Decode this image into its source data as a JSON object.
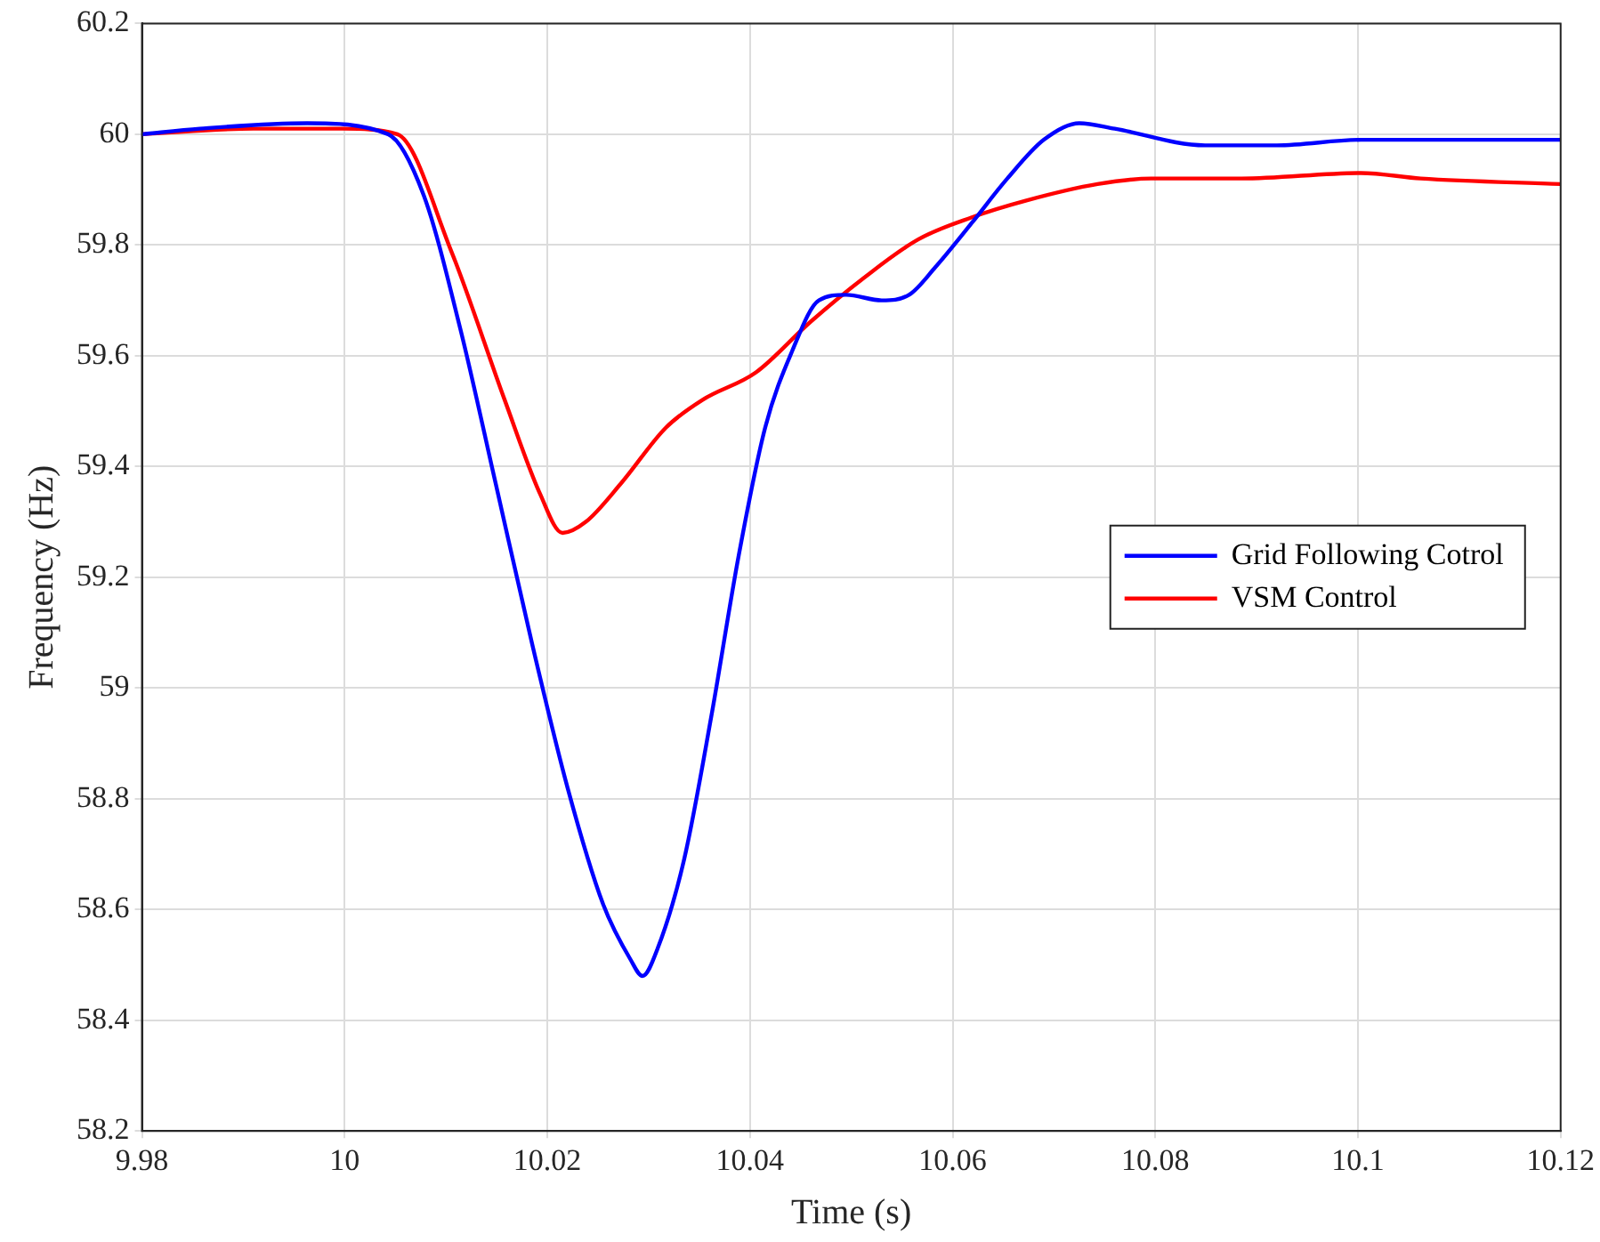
{
  "chart_data": {
    "type": "line",
    "xlabel": "Time (s)",
    "ylabel": "Frequency (Hz)",
    "xlim": [
      9.98,
      10.12
    ],
    "xticks": [
      9.98,
      10,
      10.02,
      10.04,
      10.06,
      10.08,
      10.1,
      10.12
    ],
    "ylim": [
      58.2,
      60.2
    ],
    "yticks": [
      58.2,
      58.4,
      58.6,
      58.8,
      59,
      59.2,
      59.4,
      59.6,
      59.8,
      60,
      60.2
    ],
    "grid": true,
    "legend": "right",
    "marker": "none",
    "line_style": "solid",
    "series": [
      {
        "name": "Grid Following Cotrol",
        "color": "#0000ff",
        "x": [
          9.98,
          9.9857,
          9.9963,
          10.0043,
          10.0078,
          10.0114,
          10.0149,
          10.0185,
          10.022,
          10.0255,
          10.0282,
          10.0294,
          10.0309,
          10.0335,
          10.0362,
          10.0389,
          10.0415,
          10.0442,
          10.0468,
          10.0495,
          10.053,
          10.0557,
          10.0583,
          10.0619,
          10.0654,
          10.069,
          10.0725,
          10.076,
          10.0849,
          10.092,
          10.1003,
          10.1097,
          10.12
        ],
        "values": [
          60.0,
          60.01,
          60.02,
          60.0,
          59.89,
          59.65,
          59.37,
          59.08,
          58.82,
          58.61,
          58.51,
          58.48,
          58.53,
          58.69,
          58.95,
          59.24,
          59.47,
          59.61,
          59.7,
          59.71,
          59.7,
          59.71,
          59.76,
          59.84,
          59.92,
          59.99,
          60.02,
          60.01,
          59.98,
          59.98,
          59.99,
          59.99,
          59.99
        ]
      },
      {
        "name": "VSM Control",
        "color": "#ff0000",
        "x": [
          9.98,
          9.991,
          9.9998,
          10.0052,
          10.0105,
          10.0158,
          10.0193,
          10.0215,
          10.0238,
          10.0273,
          10.0317,
          10.0353,
          10.0406,
          10.0459,
          10.0512,
          10.0566,
          10.0619,
          10.0672,
          10.0743,
          10.0796,
          10.0885,
          10.1003,
          10.1062,
          10.12
        ],
        "values": [
          60.0,
          60.01,
          60.01,
          60.0,
          59.79,
          59.52,
          59.35,
          59.28,
          59.3,
          59.37,
          59.47,
          59.52,
          59.57,
          59.66,
          59.74,
          59.81,
          59.85,
          59.88,
          59.91,
          59.92,
          59.92,
          59.93,
          59.92,
          59.91
        ]
      }
    ]
  }
}
